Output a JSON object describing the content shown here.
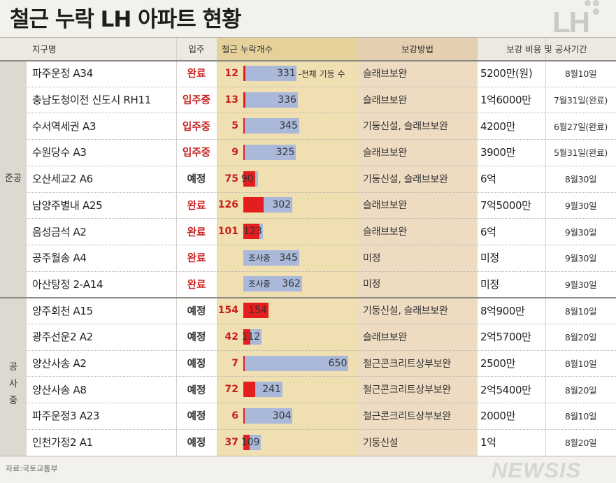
{
  "title": "철근 누락 LH 아파트 현황",
  "logo": "LH",
  "source": "자료:국토교통부",
  "watermark": "NEWSIS",
  "headers": {
    "district": "지구명",
    "status": "입주",
    "missing": "철근 누락개수",
    "method": "보강방법",
    "cost_period": "보강 비용 및 공사기간"
  },
  "groups": [
    {
      "label": "준공",
      "rows": 9
    },
    {
      "label": "공사 중",
      "rows": 6
    }
  ],
  "annotation": "-전체 기둥 수",
  "colors": {
    "missing_bar": "#e41e1e",
    "total_bar": "#aab8d9",
    "status_red": "#c81e1e",
    "band_missing": "#efdfb1",
    "band_method": "#eedcc2"
  },
  "chart_data": {
    "type": "bar",
    "series": [
      {
        "name": "",
        "values": [
          12,
          13,
          5,
          9,
          75,
          126,
          101,
          null,
          null,
          154,
          42,
          7,
          72,
          6,
          37
        ]
      },
      {
        "name": "전체 기둥 수",
        "values": [
          331,
          336,
          345,
          325,
          90,
          302,
          123,
          345,
          362,
          154,
          112,
          650,
          241,
          304,
          109
        ]
      }
    ],
    "xlabel": "철근 누락개수",
    "ylabel": ""
  },
  "rows": [
    {
      "name": "파주운정 A34",
      "status": "완료",
      "status_color": "red",
      "missing": "12",
      "total": "331",
      "method": "슬래브보완",
      "cost": "5200만(원)",
      "period": "8월10일"
    },
    {
      "name": "충남도청이전 신도시 RH11",
      "status": "입주중",
      "status_color": "red",
      "missing": "13",
      "total": "336",
      "method": "슬래브보완",
      "cost": "1억6000만",
      "period": "7월31일(완료)"
    },
    {
      "name": "수서역세권 A3",
      "status": "입주중",
      "status_color": "red",
      "missing": "5",
      "total": "345",
      "method": "기둥신설, 슬래브보완",
      "cost": "4200만",
      "period": "6월27일(완료)"
    },
    {
      "name": "수원당수 A3",
      "status": "입주중",
      "status_color": "red",
      "missing": "9",
      "total": "325",
      "method": "슬래브보완",
      "cost": "3900만",
      "period": "5월31일(완료)"
    },
    {
      "name": "오산세교2 A6",
      "status": "예정",
      "status_color": "dark",
      "missing": "75",
      "total": "90",
      "method": "기둥신설, 슬래브보완",
      "cost": "6억",
      "period": "8월30일"
    },
    {
      "name": "남양주별내 A25",
      "status": "완료",
      "status_color": "red",
      "missing": "126",
      "total": "302",
      "method": "슬래브보완",
      "cost": "7억5000만",
      "period": "9월30일"
    },
    {
      "name": "음성금석 A2",
      "status": "완료",
      "status_color": "red",
      "missing": "101",
      "total": "123",
      "method": "슬래브보완",
      "cost": "6억",
      "period": "9월30일"
    },
    {
      "name": "공주월송 A4",
      "status": "완료",
      "status_color": "red",
      "missing": "조사중",
      "total": "345",
      "method": "미정",
      "cost": "미정",
      "period": "9월30일"
    },
    {
      "name": "아산탕정 2-A14",
      "status": "완료",
      "status_color": "red",
      "missing": "조사중",
      "total": "362",
      "method": "미정",
      "cost": "미정",
      "period": "9월30일"
    },
    {
      "name": "양주회천 A15",
      "status": "예정",
      "status_color": "dark",
      "missing": "154",
      "total": "154",
      "method": "기둥신설, 슬래브보완",
      "cost": "8억900만",
      "period": "8월10일"
    },
    {
      "name": "광주선운2 A2",
      "status": "예정",
      "status_color": "dark",
      "missing": "42",
      "total": "112",
      "method": "슬래브보완",
      "cost": "2억5700만",
      "period": "8월20일"
    },
    {
      "name": "양산사송 A2",
      "status": "예정",
      "status_color": "dark",
      "missing": "7",
      "total": "650",
      "method": "철근콘크리트상부보완",
      "cost": "2500만",
      "period": "8월10일"
    },
    {
      "name": "양산사송 A8",
      "status": "예정",
      "status_color": "dark",
      "missing": "72",
      "total": "241",
      "method": "철근콘크리트상부보완",
      "cost": "2억5400만",
      "period": "8월20일"
    },
    {
      "name": "파주운정3 A23",
      "status": "예정",
      "status_color": "dark",
      "missing": "6",
      "total": "304",
      "method": "철근콘크리트상부보완",
      "cost": "2000만",
      "period": "8월10일"
    },
    {
      "name": "인천가정2 A1",
      "status": "예정",
      "status_color": "dark",
      "missing": "37",
      "total": "109",
      "method": "기둥신설",
      "cost": "1억",
      "period": "8월20일"
    }
  ]
}
